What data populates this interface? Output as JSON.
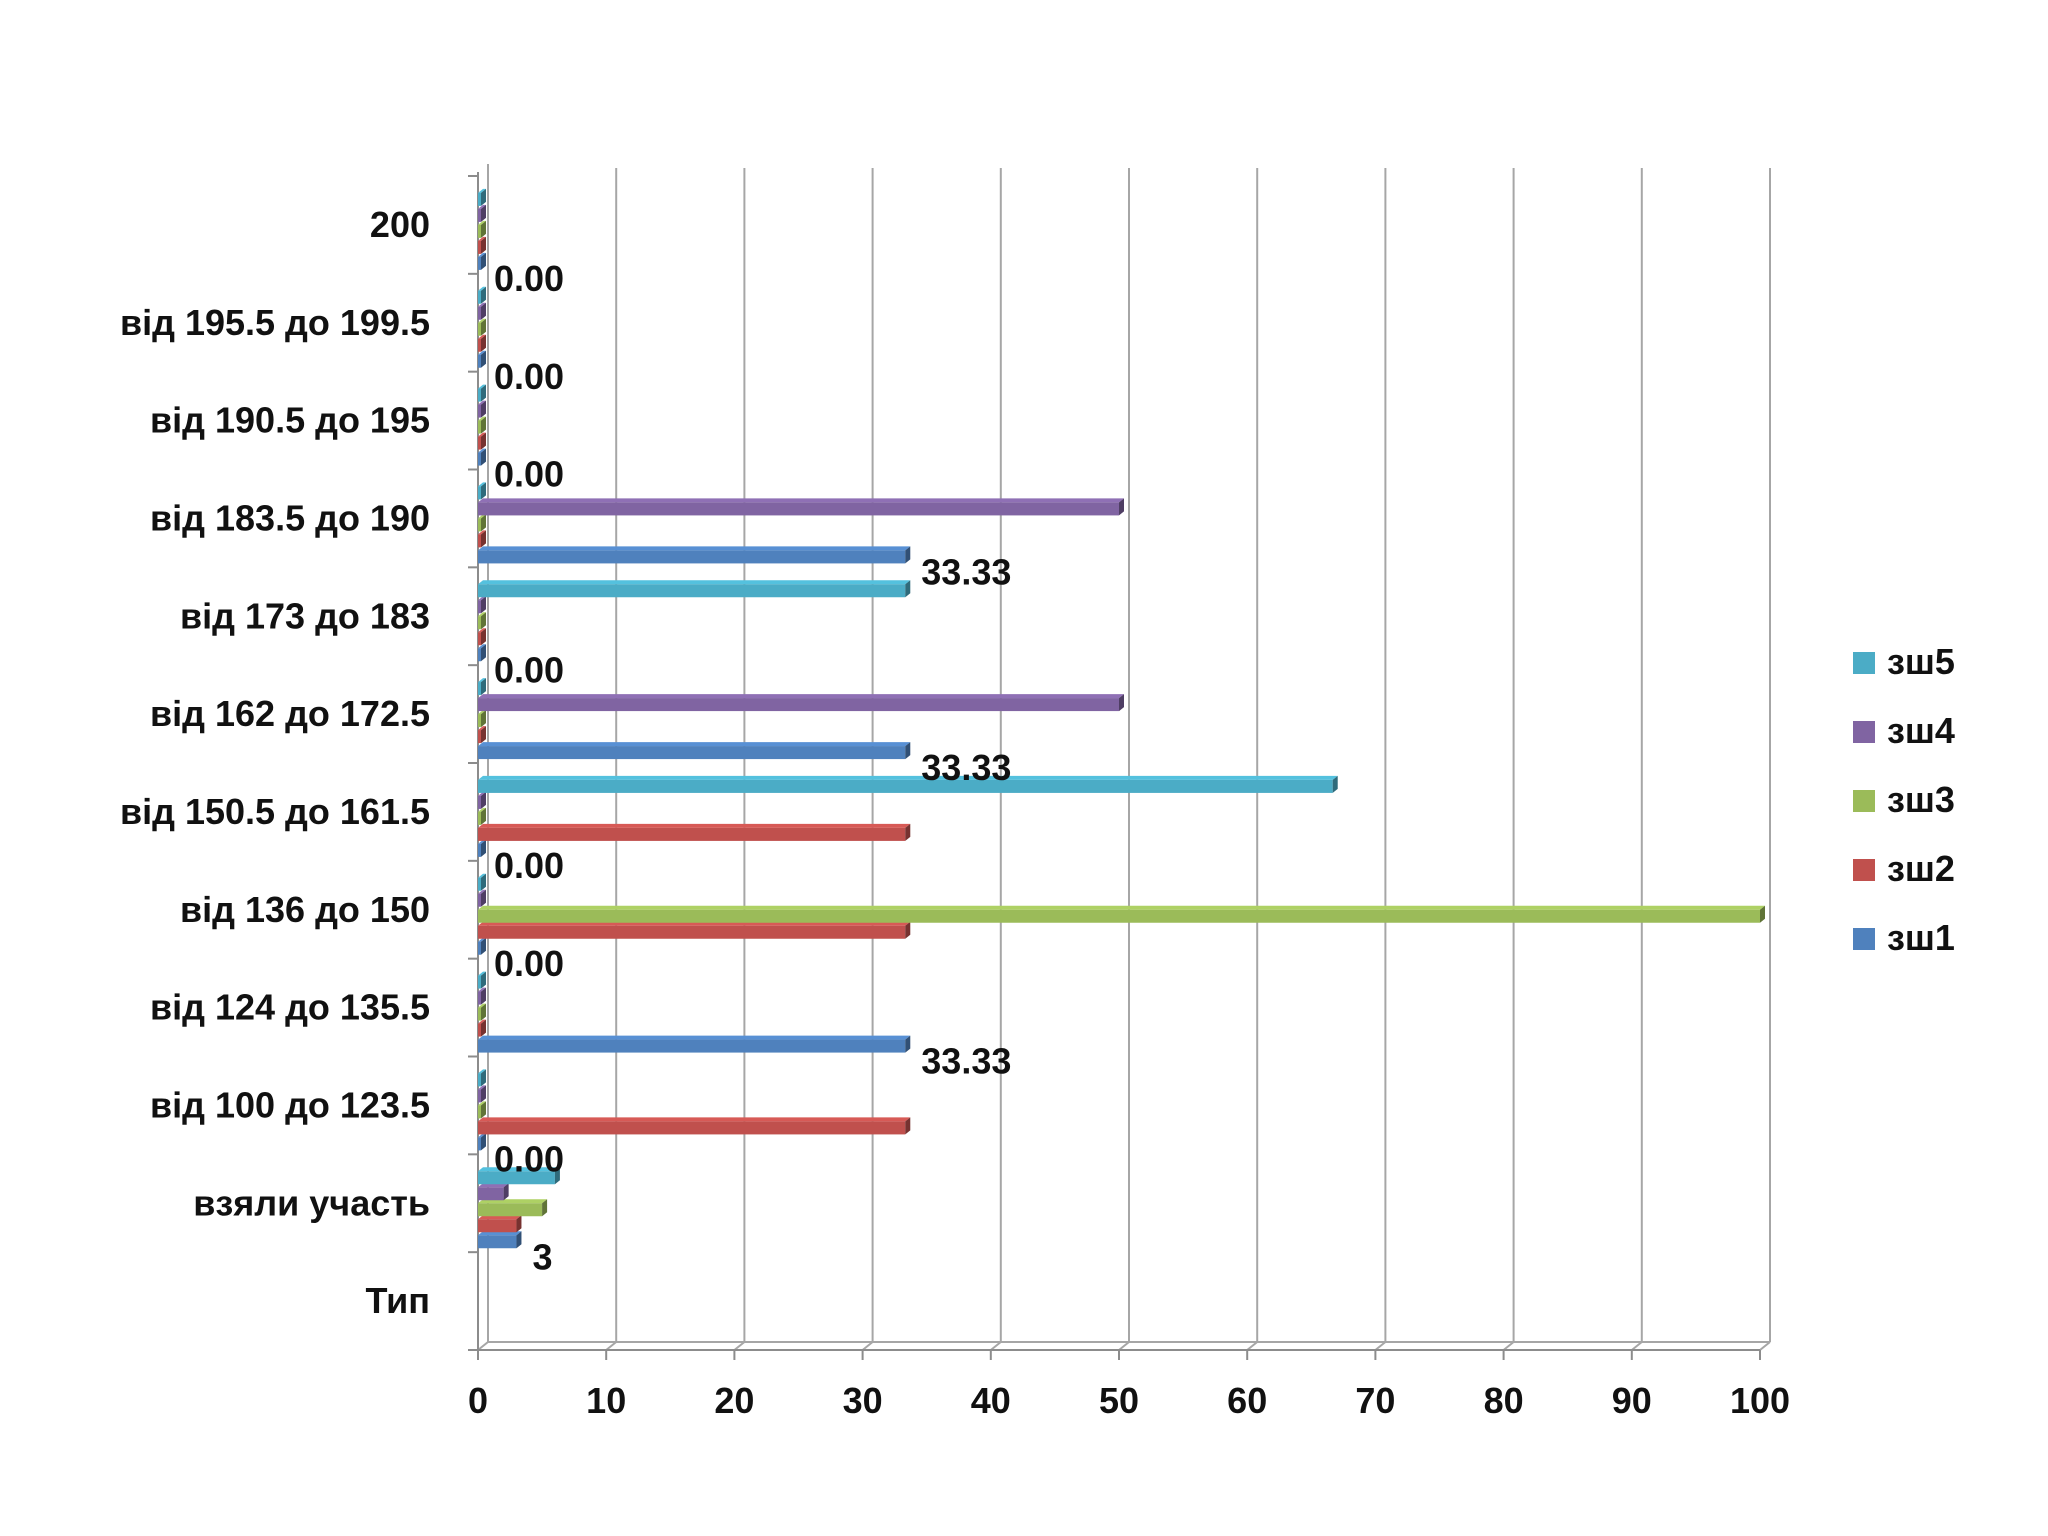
{
  "chart_data": {
    "type": "bar",
    "orientation": "horizontal",
    "style": "3d-clustered",
    "categories": [
      "Тип",
      "взяли участь",
      "від 100 до 123.5",
      "від 124 до 135.5",
      "від 136 до 150",
      "від 150.5 до 161.5",
      "від 162 до 172.5",
      "від 173 до 183",
      "від 183.5 до 190",
      "від 190.5 до 195",
      "від 195.5 до 199.5",
      "200"
    ],
    "series": [
      {
        "name": "зш1",
        "color": "#4F81BD",
        "values": [
          null,
          3,
          0,
          33.33,
          0,
          0,
          33.33,
          0,
          33.33,
          0,
          0,
          0
        ]
      },
      {
        "name": "зш2",
        "color": "#C0504D",
        "values": [
          null,
          3,
          33.33,
          0,
          33.33,
          33.33,
          0,
          0,
          0,
          0,
          0,
          0
        ]
      },
      {
        "name": "зш3",
        "color": "#9BBB59",
        "values": [
          null,
          5,
          0,
          0,
          100,
          0,
          0,
          0,
          0,
          0,
          0,
          0
        ]
      },
      {
        "name": "зш4",
        "color": "#8064A2",
        "values": [
          null,
          2,
          0,
          0,
          0,
          0,
          50,
          0,
          50,
          0,
          0,
          0
        ]
      },
      {
        "name": "зш5",
        "color": "#4BACC6",
        "values": [
          null,
          6,
          0,
          0,
          0,
          66.67,
          0,
          33.33,
          0,
          0,
          0,
          0
        ]
      }
    ],
    "data_labels": [
      "",
      "3",
      "0.00",
      "33.33",
      "0.00",
      "0.00",
      "33.33",
      "0.00",
      "33.33",
      "0.00",
      "0.00",
      "0.00"
    ],
    "x_ticks": [
      "0",
      "10",
      "20",
      "30",
      "40",
      "50",
      "60",
      "70",
      "80",
      "90",
      "100"
    ],
    "xlim": [
      0,
      100
    ],
    "grid": "vertical",
    "legend": "right",
    "title": "",
    "xlabel": "",
    "ylabel": ""
  }
}
